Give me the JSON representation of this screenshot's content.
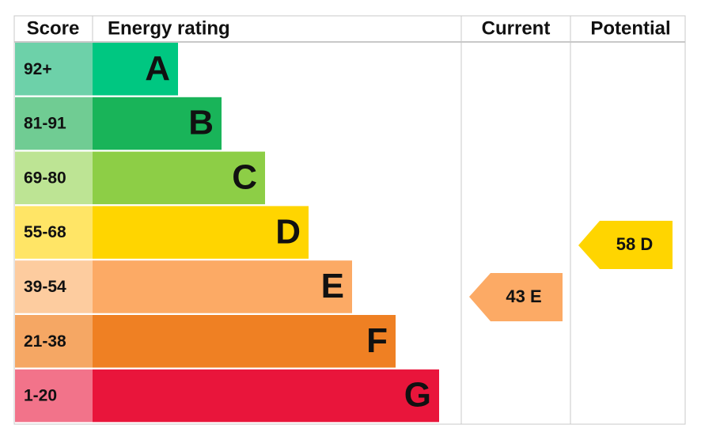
{
  "header": {
    "score": "Score",
    "rating": "Energy rating",
    "current": "Current",
    "potential": "Potential"
  },
  "bands": [
    {
      "score": "92+",
      "letter": "A",
      "color": "#00c781",
      "score_color": "#6dd1a9"
    },
    {
      "score": "81-91",
      "letter": "B",
      "color": "#19b459",
      "score_color": "#70cc93"
    },
    {
      "score": "69-80",
      "letter": "C",
      "color": "#8dce46",
      "score_color": "#bde494"
    },
    {
      "score": "55-68",
      "letter": "D",
      "color": "#ffd500",
      "score_color": "#ffe566"
    },
    {
      "score": "39-54",
      "letter": "E",
      "color": "#fcaa65",
      "score_color": "#fdcc9f"
    },
    {
      "score": "21-38",
      "letter": "F",
      "color": "#ef8023",
      "score_color": "#f5a764"
    },
    {
      "score": "1-20",
      "letter": "G",
      "color": "#e9153b",
      "score_color": "#f2738a"
    }
  ],
  "current": {
    "label": "43 E",
    "color": "#fcaa65"
  },
  "potential": {
    "label": "58 D",
    "color": "#ffd500"
  }
}
